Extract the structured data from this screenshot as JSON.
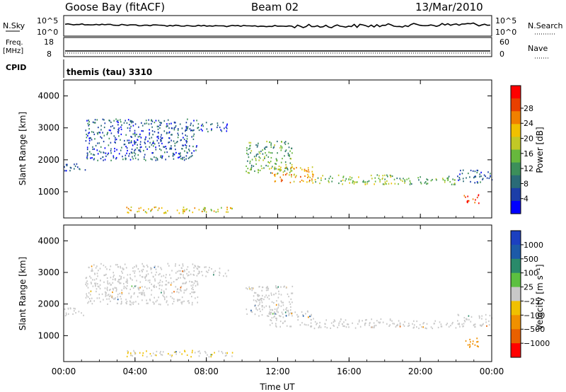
{
  "header": {
    "site": "Goose Bay (fitACF)",
    "beam": "Beam 02",
    "date": "13/Mar/2010"
  },
  "status_panels": {
    "nsky": {
      "label": "N.Sky",
      "ticks": [
        "10^5",
        "10^0"
      ],
      "right_label": "N.Search",
      "right_ticks": [
        "10^5",
        "10^0"
      ]
    },
    "freq": {
      "label_line1": "Freq.",
      "label_line2": "[MHz]",
      "ticks": [
        "18",
        "8"
      ],
      "right_label": "Nave",
      "right_ticks": [
        "60",
        "0"
      ]
    },
    "cpid": {
      "label": "CPID",
      "value": "themis (tau) 3310"
    }
  },
  "colors": {
    "power": [
      "#0000ff",
      "#1c3ea8",
      "#2a6b77",
      "#3c8f5a",
      "#67b83d",
      "#c2c826",
      "#f0c000",
      "#f08000",
      "#e84000",
      "#ff0000"
    ],
    "velocity": [
      "#1c40c0",
      "#1c5aa8",
      "#2a8a6a",
      "#5cc040",
      "#c8c8c8",
      "#f0c000",
      "#f09000",
      "#e86000",
      "#ff0000"
    ]
  },
  "chart_data": [
    {
      "type": "heatmap",
      "name": "power",
      "ylabel": "Slant Range [km]",
      "xlabel": "",
      "xlim": [
        0,
        24
      ],
      "ylim": [
        180,
        4500
      ],
      "x_ticks": [
        "00:00",
        "04:00",
        "08:00",
        "12:00",
        "16:00",
        "20:00",
        "00:00"
      ],
      "y_ticks": [
        1000,
        2000,
        3000,
        4000
      ],
      "colorbar": {
        "label": "Power [dB]",
        "ticks": [
          "4",
          "8",
          "12",
          "16",
          "20",
          "24",
          "28"
        ],
        "range": [
          0,
          30
        ]
      },
      "regions": [
        {
          "x": [
            0.0,
            1.2
          ],
          "y": [
            1650,
            1900
          ],
          "value": 6
        },
        {
          "x": [
            1.2,
            7.5
          ],
          "y": [
            2000,
            3300
          ],
          "value": 6
        },
        {
          "x": [
            7.5,
            9.2
          ],
          "y": [
            2900,
            3200
          ],
          "value": 5
        },
        {
          "x": [
            3.5,
            9.5
          ],
          "y": [
            350,
            550
          ],
          "value": 18
        },
        {
          "x": [
            10.2,
            12.8
          ],
          "y": [
            1600,
            2600
          ],
          "value": 12
        },
        {
          "x": [
            11.5,
            14.0
          ],
          "y": [
            1300,
            1800
          ],
          "value": 20
        },
        {
          "x": [
            14.0,
            18.5
          ],
          "y": [
            1250,
            1550
          ],
          "value": 14
        },
        {
          "x": [
            18.5,
            22.0
          ],
          "y": [
            1250,
            1500
          ],
          "value": 12
        },
        {
          "x": [
            22.0,
            24.0
          ],
          "y": [
            1300,
            1700
          ],
          "value": 6
        },
        {
          "x": [
            22.4,
            23.3
          ],
          "y": [
            650,
            950
          ],
          "value": 26
        }
      ]
    },
    {
      "type": "heatmap",
      "name": "velocity",
      "ylabel": "Slant Range [km]",
      "xlabel": "Time UT",
      "xlim": [
        0,
        24
      ],
      "ylim": [
        180,
        4500
      ],
      "x_ticks": [
        "00:00",
        "04:00",
        "08:00",
        "12:00",
        "16:00",
        "20:00",
        "00:00"
      ],
      "y_ticks": [
        1000,
        2000,
        3000,
        4000
      ],
      "colorbar": {
        "label": "Velocity [m s⁻¹]",
        "ticks": [
          "1000",
          "500",
          "100",
          "25",
          "−25",
          "−100",
          "−500",
          "−1000"
        ]
      },
      "regions": [
        {
          "x": [
            0.0,
            1.2
          ],
          "y": [
            1650,
            1900
          ],
          "value": 0
        },
        {
          "x": [
            1.2,
            7.5
          ],
          "y": [
            2000,
            3300
          ],
          "value": 0
        },
        {
          "x": [
            7.5,
            9.2
          ],
          "y": [
            2900,
            3200
          ],
          "value": 0
        },
        {
          "x": [
            3.5,
            9.5
          ],
          "y": [
            350,
            550
          ],
          "value": -20
        },
        {
          "x": [
            10.2,
            12.8
          ],
          "y": [
            1600,
            2600
          ],
          "value": 0
        },
        {
          "x": [
            11.5,
            14.0
          ],
          "y": [
            1300,
            1800
          ],
          "value": 0
        },
        {
          "x": [
            14.0,
            18.5
          ],
          "y": [
            1250,
            1550
          ],
          "value": 0
        },
        {
          "x": [
            18.5,
            22.0
          ],
          "y": [
            1250,
            1500
          ],
          "value": 0
        },
        {
          "x": [
            22.0,
            24.0
          ],
          "y": [
            1300,
            1700
          ],
          "value": 0
        },
        {
          "x": [
            22.4,
            23.3
          ],
          "y": [
            650,
            950
          ],
          "value": -150
        }
      ]
    }
  ]
}
